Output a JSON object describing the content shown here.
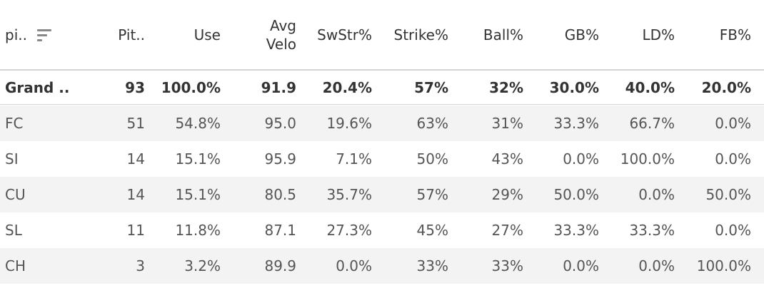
{
  "table": {
    "columns": [
      {
        "key": "pitch",
        "label": "pi.."
      },
      {
        "key": "pitches",
        "label": "Pit.."
      },
      {
        "key": "use",
        "label": "Use"
      },
      {
        "key": "avg_velo",
        "label": "Avg\nVelo"
      },
      {
        "key": "swstr",
        "label": "SwStr%"
      },
      {
        "key": "strike",
        "label": "Strike%"
      },
      {
        "key": "ball",
        "label": "Ball%"
      },
      {
        "key": "gb",
        "label": "GB%"
      },
      {
        "key": "ld",
        "label": "LD%"
      },
      {
        "key": "fb",
        "label": "FB%"
      }
    ],
    "sort_icon": "sort-descending-icon",
    "rows": [
      {
        "cells": [
          "Grand ..",
          "93",
          "100.0%",
          "91.9",
          "20.4%",
          "57%",
          "32%",
          "30.0%",
          "40.0%",
          "20.0%"
        ],
        "total": true
      },
      {
        "cells": [
          "FC",
          "51",
          "54.8%",
          "95.0",
          "19.6%",
          "63%",
          "31%",
          "33.3%",
          "66.7%",
          "0.0%"
        ]
      },
      {
        "cells": [
          "SI",
          "14",
          "15.1%",
          "95.9",
          "7.1%",
          "50%",
          "43%",
          "0.0%",
          "100.0%",
          "0.0%"
        ]
      },
      {
        "cells": [
          "CU",
          "14",
          "15.1%",
          "80.5",
          "35.7%",
          "57%",
          "29%",
          "50.0%",
          "0.0%",
          "50.0%"
        ]
      },
      {
        "cells": [
          "SL",
          "11",
          "11.8%",
          "87.1",
          "27.3%",
          "45%",
          "27%",
          "33.3%",
          "33.3%",
          "0.0%"
        ]
      },
      {
        "cells": [
          "CH",
          "3",
          "3.2%",
          "89.9",
          "0.0%",
          "33%",
          "33%",
          "0.0%",
          "0.0%",
          "100.0%"
        ]
      }
    ]
  }
}
